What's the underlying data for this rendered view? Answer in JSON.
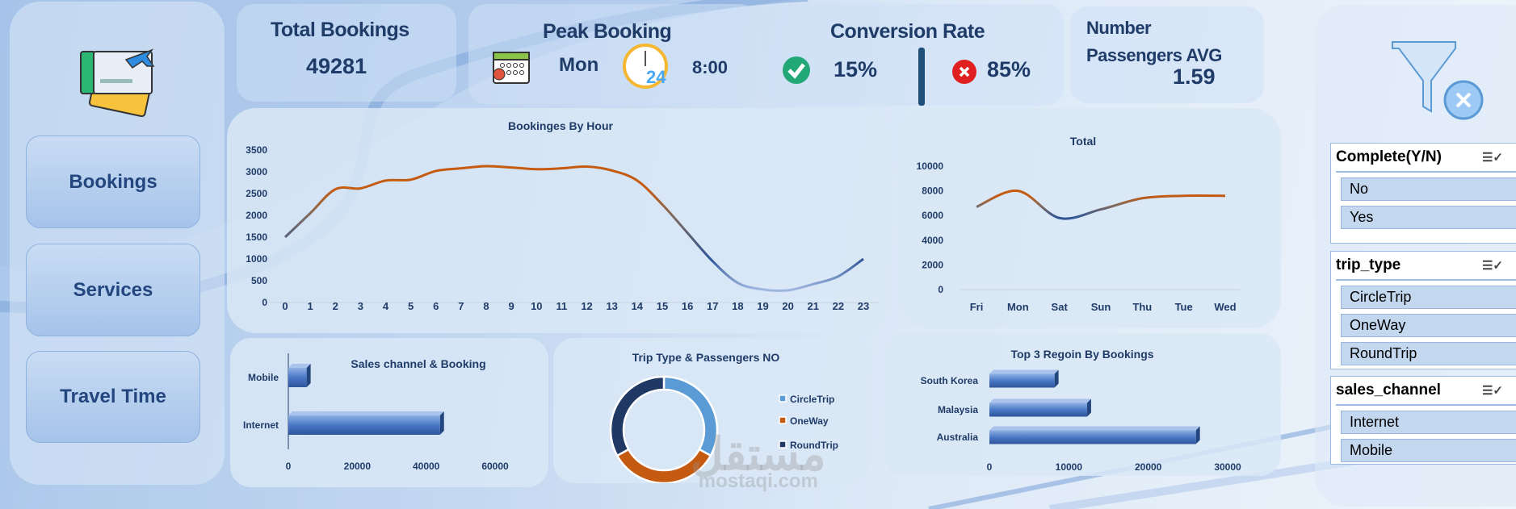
{
  "nav": {
    "items": [
      {
        "label": "Bookings"
      },
      {
        "label": "Services"
      },
      {
        "label": "Travel Time"
      }
    ]
  },
  "kpis": {
    "total_bookings": {
      "title": "Total Bookings",
      "value": "49281"
    },
    "peak_booking": {
      "title": "Peak Booking",
      "day": "Mon",
      "time": "8:00",
      "clock_number": "24"
    },
    "conversion_rate": {
      "title": "Conversion Rate",
      "complete": "15%",
      "incomplete": "85%"
    },
    "passengers": {
      "title_line1": "Number",
      "title_line2": "Passengers AVG",
      "value": "1.59"
    }
  },
  "slicers": [
    {
      "title": "Complete(Y/N)",
      "items": [
        "No",
        "Yes"
      ]
    },
    {
      "title": "trip_type",
      "items": [
        "CircleTrip",
        "OneWay",
        "RoundTrip"
      ]
    },
    {
      "title": "sales_channel",
      "items": [
        "Internet",
        "Mobile"
      ]
    }
  ],
  "watermark": {
    "arabic": "مستقل",
    "latin": "mostaqi.com"
  },
  "colors": {
    "high": "#c55a11",
    "mid": "#7f6a5d",
    "low": "#2f5597",
    "lowest": "#9db5e0",
    "bar": "#4472c4",
    "circle": "#5b9bd5",
    "oneway": "#c55a11",
    "roundtrip": "#203864",
    "text": "#1f3b68"
  },
  "chart_data": [
    {
      "type": "line",
      "title": "Bookinges By Hour",
      "categories": [
        "0",
        "1",
        "2",
        "3",
        "4",
        "5",
        "6",
        "7",
        "8",
        "9",
        "10",
        "11",
        "12",
        "13",
        "14",
        "15",
        "16",
        "17",
        "18",
        "19",
        "20",
        "21",
        "22",
        "23"
      ],
      "values": [
        1500,
        2050,
        2600,
        2620,
        2800,
        2820,
        3020,
        3080,
        3130,
        3100,
        3060,
        3080,
        3120,
        3030,
        2800,
        2250,
        1600,
        950,
        450,
        300,
        280,
        420,
        600,
        1000
      ],
      "yticks": [
        "0",
        "500",
        "1000",
        "1500",
        "2000",
        "2500",
        "3000",
        "3500"
      ],
      "ylim": [
        0,
        3500
      ],
      "grid": false
    },
    {
      "type": "line",
      "title": "Total",
      "categories": [
        "Fri",
        "Mon",
        "Sat",
        "Sun",
        "Thu",
        "Tue",
        "Wed"
      ],
      "values": [
        6700,
        8000,
        5800,
        6500,
        7400,
        7600,
        7600
      ],
      "yticks": [
        "0",
        "2000",
        "4000",
        "6000",
        "8000",
        "10000"
      ],
      "ylim": [
        0,
        10000
      ],
      "grid": false
    },
    {
      "type": "bar",
      "orientation": "horizontal",
      "title": "Sales channel & Booking",
      "categories": [
        "Mobile",
        "Internet"
      ],
      "values": [
        5300,
        44000
      ],
      "xticks": [
        "0",
        "20000",
        "40000",
        "60000"
      ],
      "xlim": [
        0,
        60000
      ]
    },
    {
      "type": "pie",
      "variant": "donut",
      "title": "Trip Type & Passengers NO",
      "categories": [
        "CircleTrip",
        "OneWay",
        "RoundTrip"
      ],
      "values": [
        33,
        34,
        33
      ],
      "legend": "right"
    },
    {
      "type": "bar",
      "orientation": "horizontal",
      "title": "Top 3 Regoin By Bookings",
      "categories": [
        "South Korea",
        "Malaysia",
        "Australia"
      ],
      "values": [
        8200,
        12300,
        26000
      ],
      "xticks": [
        "0",
        "10000",
        "20000",
        "30000"
      ],
      "xlim": [
        0,
        30000
      ]
    }
  ]
}
